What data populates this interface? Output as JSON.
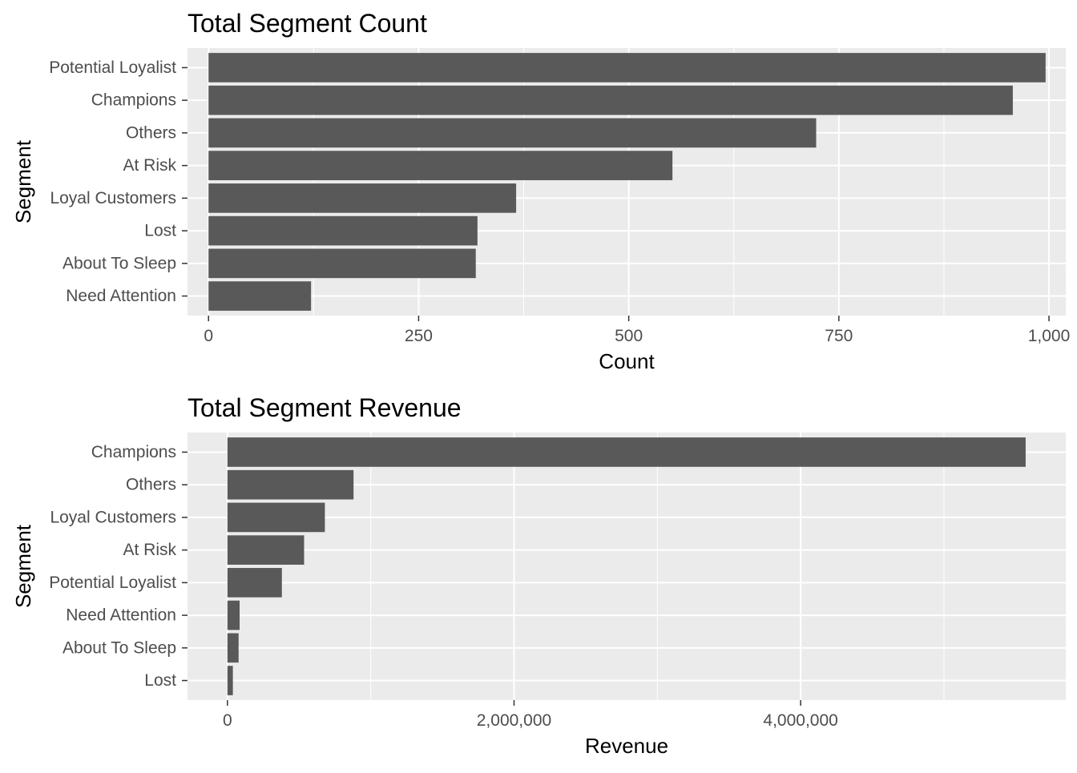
{
  "chart_data": [
    {
      "type": "bar",
      "orientation": "horizontal",
      "title": "Total Segment Count",
      "xlabel": "Count",
      "ylabel": "Segment",
      "categories": [
        "Potential Loyalist",
        "Champions",
        "Others",
        "At Risk",
        "Loyal Customers",
        "Lost",
        "About To Sleep",
        "Need Attention"
      ],
      "values": [
        996,
        957,
        723,
        552,
        366,
        320,
        318,
        122
      ],
      "xlim": [
        -25,
        1020
      ],
      "x_ticks": [
        0,
        250,
        500,
        750,
        1000
      ],
      "x_tick_labels": [
        "0",
        "250",
        "500",
        "750",
        "1,000"
      ],
      "grid": true,
      "bar_color": "#595959",
      "panel_color": "#EBEBEB",
      "grid_color": "#FFFFFF"
    },
    {
      "type": "bar",
      "orientation": "horizontal",
      "title": "Total Segment Revenue",
      "xlabel": "Revenue",
      "ylabel": "Segment",
      "categories": [
        "Champions",
        "Others",
        "Loyal Customers",
        "At Risk",
        "Potential Loyalist",
        "Need Attention",
        "About To Sleep",
        "Lost"
      ],
      "values": [
        5570000,
        880000,
        680000,
        535000,
        380000,
        85000,
        78000,
        38000
      ],
      "xlim": [
        -278500,
        5850000
      ],
      "x_ticks": [
        0,
        2000000,
        4000000
      ],
      "x_tick_labels": [
        "0",
        "2,000,000",
        "4,000,000"
      ],
      "grid": true,
      "bar_color": "#595959",
      "panel_color": "#EBEBEB",
      "grid_color": "#FFFFFF"
    }
  ]
}
